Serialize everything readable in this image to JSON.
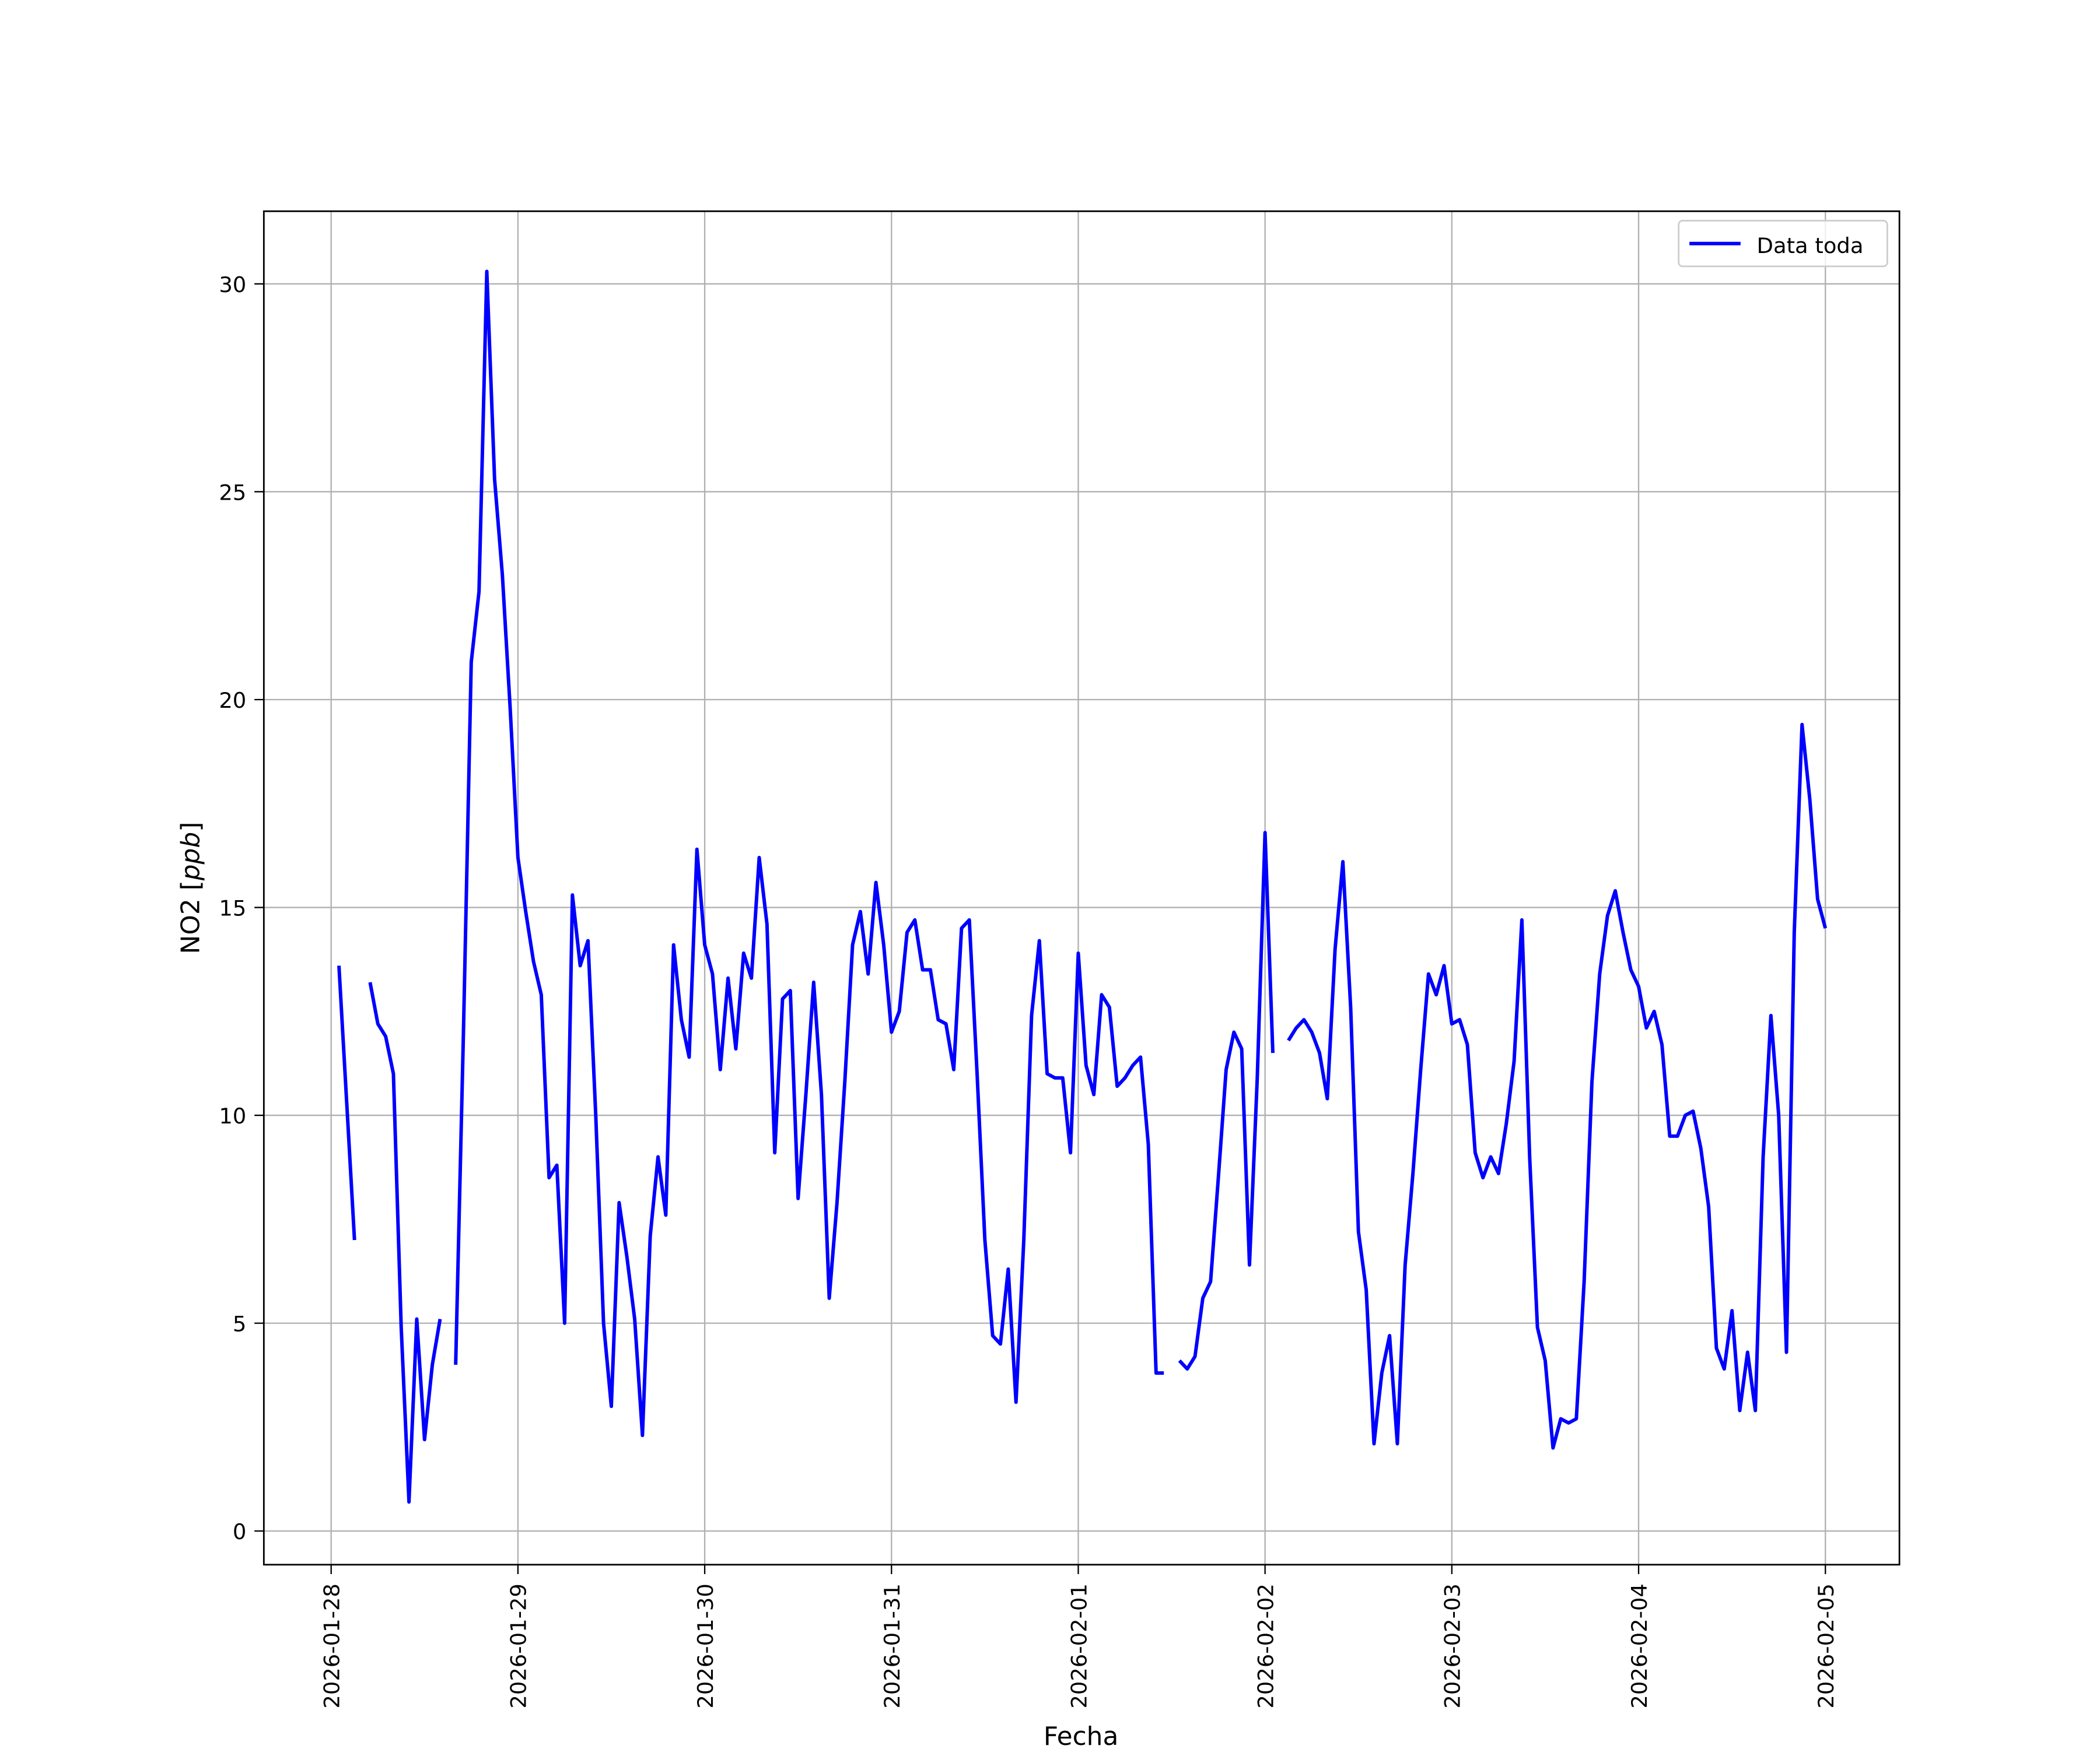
{
  "chart_data": {
    "type": "line",
    "title": "",
    "xlabel": "Fecha",
    "ylabel": "NO2 [ppb]",
    "ylabel_main": "NO2 [",
    "ylabel_unit": "ppb",
    "ylabel_close": "]",
    "xlim": [
      "2026-01-27 15:30",
      "2026-02-05 08:00"
    ],
    "ylim": [
      -0.8,
      31.8
    ],
    "grid": true,
    "legend_placement": "top-right",
    "x_ticks": [
      "2026-01-28",
      "2026-01-29",
      "2026-01-30",
      "2026-01-31",
      "2026-02-01",
      "2026-02-02",
      "2026-02-03",
      "2026-02-04",
      "2026-02-05"
    ],
    "y_ticks": [
      0,
      5,
      10,
      15,
      20,
      25,
      30
    ],
    "y_tick_labels": [
      "0",
      "5",
      "10",
      "15",
      "20",
      "25",
      "30"
    ],
    "series": [
      {
        "name": "Data toda",
        "color": "#0000ff",
        "points": [
          [
            "2026-01-28 01:00",
            13.6
          ],
          [
            "2026-01-28 02:00",
            10.3
          ],
          [
            "2026-01-28 03:00",
            7.0
          ],
          [
            "2026-01-28 04:00",
            null
          ],
          [
            "2026-01-28 05:00",
            13.2
          ],
          [
            "2026-01-28 06:00",
            12.2
          ],
          [
            "2026-01-28 07:00",
            11.9
          ],
          [
            "2026-01-28 08:00",
            11.0
          ],
          [
            "2026-01-28 09:00",
            4.9
          ],
          [
            "2026-01-28 10:00",
            0.7
          ],
          [
            "2026-01-28 11:00",
            5.1
          ],
          [
            "2026-01-28 12:00",
            2.2
          ],
          [
            "2026-01-28 13:00",
            4.0
          ],
          [
            "2026-01-28 14:00",
            5.1
          ],
          [
            "2026-01-28 15:00",
            null
          ],
          [
            "2026-01-28 16:00",
            4.0
          ],
          [
            "2026-01-28 17:00",
            12.0
          ],
          [
            "2026-01-28 18:00",
            20.9
          ],
          [
            "2026-01-28 19:00",
            22.6
          ],
          [
            "2026-01-28 20:00",
            30.3
          ],
          [
            "2026-01-28 21:00",
            25.3
          ],
          [
            "2026-01-28 22:00",
            23.0
          ],
          [
            "2026-01-28 23:00",
            19.8
          ],
          [
            "2026-01-29 00:00",
            16.2
          ],
          [
            "2026-01-29 01:00",
            14.9
          ],
          [
            "2026-01-29 02:00",
            13.7
          ],
          [
            "2026-01-29 03:00",
            12.9
          ],
          [
            "2026-01-29 04:00",
            8.5
          ],
          [
            "2026-01-29 05:00",
            8.8
          ],
          [
            "2026-01-29 06:00",
            5.0
          ],
          [
            "2026-01-29 07:00",
            15.3
          ],
          [
            "2026-01-29 08:00",
            13.6
          ],
          [
            "2026-01-29 09:00",
            14.2
          ],
          [
            "2026-01-29 10:00",
            10.0
          ],
          [
            "2026-01-29 11:00",
            5.0
          ],
          [
            "2026-01-29 12:00",
            3.0
          ],
          [
            "2026-01-29 13:00",
            7.9
          ],
          [
            "2026-01-29 14:00",
            6.6
          ],
          [
            "2026-01-29 15:00",
            5.1
          ],
          [
            "2026-01-29 16:00",
            2.3
          ],
          [
            "2026-01-29 17:00",
            7.1
          ],
          [
            "2026-01-29 18:00",
            9.0
          ],
          [
            "2026-01-29 19:00",
            7.6
          ],
          [
            "2026-01-29 20:00",
            14.1
          ],
          [
            "2026-01-29 21:00",
            12.3
          ],
          [
            "2026-01-29 22:00",
            11.4
          ],
          [
            "2026-01-29 23:00",
            16.4
          ],
          [
            "2026-01-30 00:00",
            14.1
          ],
          [
            "2026-01-30 01:00",
            13.4
          ],
          [
            "2026-01-30 02:00",
            11.1
          ],
          [
            "2026-01-30 03:00",
            13.3
          ],
          [
            "2026-01-30 04:00",
            11.6
          ],
          [
            "2026-01-30 05:00",
            13.9
          ],
          [
            "2026-01-30 06:00",
            13.3
          ],
          [
            "2026-01-30 07:00",
            16.2
          ],
          [
            "2026-01-30 08:00",
            14.6
          ],
          [
            "2026-01-30 09:00",
            9.1
          ],
          [
            "2026-01-30 10:00",
            12.8
          ],
          [
            "2026-01-30 11:00",
            13.0
          ],
          [
            "2026-01-30 12:00",
            8.0
          ],
          [
            "2026-01-30 13:00",
            10.5
          ],
          [
            "2026-01-30 14:00",
            13.2
          ],
          [
            "2026-01-30 15:00",
            10.5
          ],
          [
            "2026-01-30 16:00",
            5.6
          ],
          [
            "2026-01-30 17:00",
            7.9
          ],
          [
            "2026-01-30 18:00",
            10.8
          ],
          [
            "2026-01-30 19:00",
            14.1
          ],
          [
            "2026-01-30 20:00",
            14.9
          ],
          [
            "2026-01-30 21:00",
            13.4
          ],
          [
            "2026-01-30 22:00",
            15.6
          ],
          [
            "2026-01-30 23:00",
            14.1
          ],
          [
            "2026-01-31 00:00",
            12.0
          ],
          [
            "2026-01-31 01:00",
            12.5
          ],
          [
            "2026-01-31 02:00",
            14.4
          ],
          [
            "2026-01-31 03:00",
            14.7
          ],
          [
            "2026-01-31 04:00",
            13.5
          ],
          [
            "2026-01-31 05:00",
            13.5
          ],
          [
            "2026-01-31 06:00",
            12.3
          ],
          [
            "2026-01-31 07:00",
            12.2
          ],
          [
            "2026-01-31 08:00",
            11.1
          ],
          [
            "2026-01-31 09:00",
            14.5
          ],
          [
            "2026-01-31 10:00",
            14.7
          ],
          [
            "2026-01-31 11:00",
            11.0
          ],
          [
            "2026-01-31 12:00",
            7.0
          ],
          [
            "2026-01-31 13:00",
            4.7
          ],
          [
            "2026-01-31 14:00",
            4.5
          ],
          [
            "2026-01-31 15:00",
            6.3
          ],
          [
            "2026-01-31 16:00",
            3.1
          ],
          [
            "2026-01-31 17:00",
            7.0
          ],
          [
            "2026-01-31 18:00",
            12.4
          ],
          [
            "2026-01-31 19:00",
            14.2
          ],
          [
            "2026-01-31 20:00",
            11.0
          ],
          [
            "2026-01-31 21:00",
            10.9
          ],
          [
            "2026-01-31 22:00",
            10.9
          ],
          [
            "2026-01-31 23:00",
            9.1
          ],
          [
            "2026-02-01 00:00",
            13.9
          ],
          [
            "2026-02-01 01:00",
            11.2
          ],
          [
            "2026-02-01 02:00",
            10.5
          ],
          [
            "2026-02-01 03:00",
            12.9
          ],
          [
            "2026-02-01 04:00",
            12.6
          ],
          [
            "2026-02-01 05:00",
            10.7
          ],
          [
            "2026-02-01 06:00",
            10.9
          ],
          [
            "2026-02-01 07:00",
            11.2
          ],
          [
            "2026-02-01 08:00",
            11.4
          ],
          [
            "2026-02-01 09:00",
            9.3
          ],
          [
            "2026-02-01 10:00",
            3.8
          ],
          [
            "2026-02-01 11:00",
            3.8
          ],
          [
            "2026-02-01 12:00",
            null
          ],
          [
            "2026-02-01 13:00",
            4.1
          ],
          [
            "2026-02-01 14:00",
            3.9
          ],
          [
            "2026-02-01 15:00",
            4.2
          ],
          [
            "2026-02-01 16:00",
            5.6
          ],
          [
            "2026-02-01 17:00",
            6.0
          ],
          [
            "2026-02-01 18:00",
            8.5
          ],
          [
            "2026-02-01 19:00",
            11.1
          ],
          [
            "2026-02-01 20:00",
            12.0
          ],
          [
            "2026-02-01 21:00",
            11.6
          ],
          [
            "2026-02-01 22:00",
            6.4
          ],
          [
            "2026-02-01 23:00",
            10.9
          ],
          [
            "2026-02-02 00:00",
            16.8
          ],
          [
            "2026-02-02 01:00",
            11.5
          ],
          [
            "2026-02-02 02:00",
            null
          ],
          [
            "2026-02-02 03:00",
            11.8
          ],
          [
            "2026-02-02 04:00",
            12.1
          ],
          [
            "2026-02-02 05:00",
            12.3
          ],
          [
            "2026-02-02 06:00",
            12.0
          ],
          [
            "2026-02-02 07:00",
            11.5
          ],
          [
            "2026-02-02 08:00",
            10.4
          ],
          [
            "2026-02-02 09:00",
            14.0
          ],
          [
            "2026-02-02 10:00",
            16.1
          ],
          [
            "2026-02-02 11:00",
            12.6
          ],
          [
            "2026-02-02 12:00",
            7.2
          ],
          [
            "2026-02-02 13:00",
            5.8
          ],
          [
            "2026-02-02 14:00",
            2.1
          ],
          [
            "2026-02-02 15:00",
            3.8
          ],
          [
            "2026-02-02 16:00",
            4.7
          ],
          [
            "2026-02-02 17:00",
            2.1
          ],
          [
            "2026-02-02 18:00",
            6.4
          ],
          [
            "2026-02-02 19:00",
            8.6
          ],
          [
            "2026-02-02 20:00",
            11.1
          ],
          [
            "2026-02-02 21:00",
            13.4
          ],
          [
            "2026-02-02 22:00",
            12.9
          ],
          [
            "2026-02-02 23:00",
            13.6
          ],
          [
            "2026-02-03 00:00",
            12.2
          ],
          [
            "2026-02-03 01:00",
            12.3
          ],
          [
            "2026-02-03 02:00",
            11.7
          ],
          [
            "2026-02-03 03:00",
            9.1
          ],
          [
            "2026-02-03 04:00",
            8.5
          ],
          [
            "2026-02-03 05:00",
            9.0
          ],
          [
            "2026-02-03 06:00",
            8.6
          ],
          [
            "2026-02-03 07:00",
            9.8
          ],
          [
            "2026-02-03 08:00",
            11.3
          ],
          [
            "2026-02-03 09:00",
            14.7
          ],
          [
            "2026-02-03 10:00",
            9.0
          ],
          [
            "2026-02-03 11:00",
            4.9
          ],
          [
            "2026-02-03 12:00",
            4.1
          ],
          [
            "2026-02-03 13:00",
            2.0
          ],
          [
            "2026-02-03 14:00",
            2.7
          ],
          [
            "2026-02-03 15:00",
            2.6
          ],
          [
            "2026-02-03 16:00",
            2.7
          ],
          [
            "2026-02-03 17:00",
            6.0
          ],
          [
            "2026-02-03 18:00",
            10.8
          ],
          [
            "2026-02-03 19:00",
            13.4
          ],
          [
            "2026-02-03 20:00",
            14.8
          ],
          [
            "2026-02-03 21:00",
            15.4
          ],
          [
            "2026-02-03 22:00",
            14.4
          ],
          [
            "2026-02-03 23:00",
            13.5
          ],
          [
            "2026-02-04 00:00",
            13.1
          ],
          [
            "2026-02-04 01:00",
            12.1
          ],
          [
            "2026-02-04 02:00",
            12.5
          ],
          [
            "2026-02-04 03:00",
            11.7
          ],
          [
            "2026-02-04 04:00",
            9.5
          ],
          [
            "2026-02-04 05:00",
            9.5
          ],
          [
            "2026-02-04 06:00",
            10.0
          ],
          [
            "2026-02-04 07:00",
            10.1
          ],
          [
            "2026-02-04 08:00",
            9.2
          ],
          [
            "2026-02-04 09:00",
            7.8
          ],
          [
            "2026-02-04 10:00",
            4.4
          ],
          [
            "2026-02-04 11:00",
            3.9
          ],
          [
            "2026-02-04 12:00",
            5.3
          ],
          [
            "2026-02-04 13:00",
            2.9
          ],
          [
            "2026-02-04 14:00",
            4.3
          ],
          [
            "2026-02-04 15:00",
            2.9
          ],
          [
            "2026-02-04 16:00",
            9.0
          ],
          [
            "2026-02-04 17:00",
            12.4
          ],
          [
            "2026-02-04 18:00",
            10.0
          ],
          [
            "2026-02-04 19:00",
            4.3
          ],
          [
            "2026-02-04 20:00",
            14.4
          ],
          [
            "2026-02-04 21:00",
            19.4
          ],
          [
            "2026-02-04 22:00",
            17.6
          ],
          [
            "2026-02-04 23:00",
            15.2
          ],
          [
            "2026-02-05 00:00",
            14.5
          ]
        ]
      }
    ]
  }
}
